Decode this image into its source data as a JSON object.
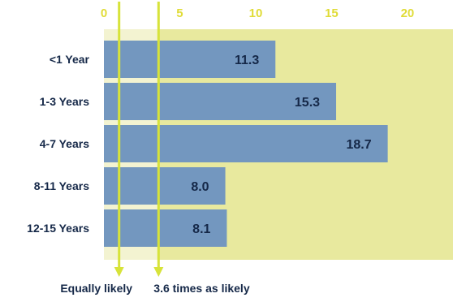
{
  "colors": {
    "bar": "#7397bf",
    "background_band": "#e8e99e",
    "light_band": "#f3f3d1",
    "accent": "#d7e33a",
    "text_dark": "#152848",
    "tick_color": "#e0dc38"
  },
  "chart_data": {
    "type": "bar",
    "orientation": "horizontal",
    "categories": [
      "<1 Year",
      "1-3 Years",
      "4-7 Years",
      "8-11 Years",
      "12-15 Years"
    ],
    "values": [
      11.3,
      15.3,
      18.7,
      8.0,
      8.1
    ],
    "value_labels": [
      "11.3",
      "15.3",
      "18.7",
      "8.0",
      "8.1"
    ],
    "xlim": [
      0,
      23
    ],
    "xticks": [
      0,
      5,
      10,
      15,
      20
    ],
    "xtick_labels": [
      "0",
      "5",
      "10",
      "15",
      "20"
    ],
    "tick_position": "top",
    "reference_lines": [
      {
        "value": 1,
        "label": "Equally likely"
      },
      {
        "value": 3.6,
        "label": "3.6 times as likely"
      }
    ]
  }
}
